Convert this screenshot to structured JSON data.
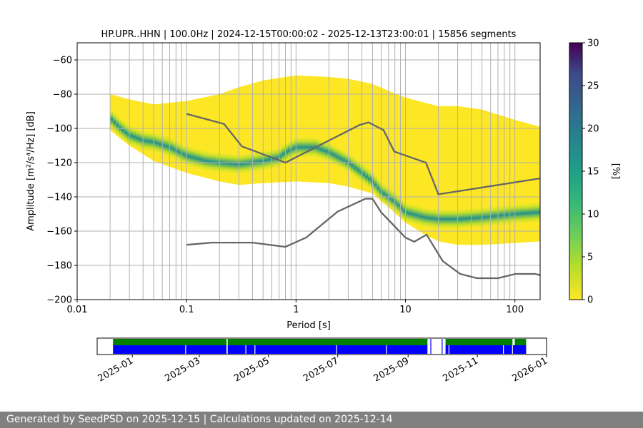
{
  "footer": {
    "generated_text": "Generated by SeedPSD on 2025-12-15 | Calculations updated on 2025-12-14"
  },
  "chart_data": [
    {
      "type": "heatmap",
      "title": "HP.UPR..HHN | 100.0Hz | 2024-12-15T00:00:02 - 2025-12-13T23:00:01 | 15856 segments",
      "xlabel": "Period [s]",
      "ylabel": "Amplitude [m²/s⁴/Hz] [dB]",
      "x_scale": "log",
      "xlim": [
        0.01,
        170
      ],
      "ylim": [
        -200,
        -50
      ],
      "x_ticks": [
        0.01,
        0.1,
        1,
        10,
        100
      ],
      "x_tick_labels": [
        "0.01",
        "0.1",
        "1",
        "10",
        "100"
      ],
      "y_ticks": [
        -200,
        -180,
        -160,
        -140,
        -120,
        -100,
        -80,
        -60
      ],
      "y_tick_labels": [
        "−200",
        "−180",
        "−160",
        "−140",
        "−120",
        "−100",
        "−80",
        "−60"
      ],
      "grid": true,
      "colorbar": {
        "label": "[%]",
        "range": [
          0,
          30
        ],
        "ticks": [
          0,
          5,
          10,
          15,
          20,
          25,
          30
        ],
        "tick_labels": [
          "0",
          "5",
          "10",
          "15",
          "20",
          "25",
          "30"
        ],
        "colormap": "viridis"
      },
      "psd_mode": {
        "period": [
          0.02,
          0.025,
          0.03,
          0.04,
          0.05,
          0.07,
          0.1,
          0.15,
          0.2,
          0.3,
          0.5,
          0.7,
          0.8,
          1,
          1.5,
          2,
          3,
          4,
          5,
          6,
          8,
          10,
          15,
          20,
          30,
          50,
          100,
          170
        ],
        "db": [
          -94,
          -100,
          -104,
          -107,
          -108,
          -111,
          -116,
          -119,
          -120,
          -121,
          -119,
          -117,
          -114,
          -111,
          -111,
          -114,
          -120,
          -126,
          -131,
          -137,
          -143,
          -149,
          -152,
          -153,
          -153,
          -152,
          -150,
          -149
        ]
      },
      "psd_range": {
        "period": [
          0.02,
          0.03,
          0.05,
          0.1,
          0.2,
          0.3,
          0.5,
          1,
          2,
          3,
          5,
          7,
          10,
          15,
          20,
          30,
          50,
          100,
          170
        ],
        "upper_db": [
          -80,
          -83,
          -86,
          -84,
          -80,
          -76,
          -72,
          -69,
          -70,
          -71,
          -74,
          -78,
          -82,
          -85,
          -87,
          -87,
          -89,
          -95,
          -99
        ],
        "lower_db": [
          -101,
          -110,
          -119,
          -126,
          -131,
          -133,
          -132,
          -131,
          -132,
          -134,
          -138,
          -146,
          -155,
          -162,
          -166,
          -168,
          -168,
          -167,
          -166
        ]
      },
      "nhnm": {
        "period": [
          0.1,
          0.22,
          0.32,
          0.8,
          3.8,
          4.6,
          6.3,
          7.9,
          15.4,
          20,
          354.8
        ],
        "db": [
          -91.5,
          -97.4,
          -110.5,
          -120,
          -98,
          -96.5,
          -101,
          -113.5,
          -120,
          -138.5,
          -126
        ]
      },
      "nlnm": {
        "period": [
          0.1,
          0.17,
          0.4,
          0.8,
          1.24,
          2.4,
          4.3,
          5.0,
          6.0,
          10.0,
          12.0,
          15.6,
          21.9,
          31.6,
          45,
          70,
          101,
          154,
          170
        ],
        "db": [
          -168,
          -166.7,
          -166.7,
          -169.2,
          -163.7,
          -148.6,
          -141.1,
          -141.1,
          -149,
          -163.8,
          -166.2,
          -162.1,
          -177.5,
          -185,
          -187.5,
          -187.5,
          -185,
          -185,
          -185.7
        ]
      }
    },
    {
      "type": "area",
      "title": "",
      "x_labels": [
        "2025-01",
        "2025-03",
        "2025-05",
        "2025-07",
        "2025-09",
        "2025-11",
        "2026-01"
      ],
      "x_label_dates": [
        "2025-01-01",
        "2025-03-01",
        "2025-05-01",
        "2025-07-01",
        "2025-09-01",
        "2025-11-01",
        "2026-01-01"
      ],
      "xlim": [
        "2024-12-01",
        "2026-01-01"
      ],
      "colors": {
        "processed": "#008000",
        "data": "#0000ff"
      },
      "processed_spans": [
        [
          "2024-12-15",
          "2025-03-25"
        ],
        [
          "2025-03-26",
          "2025-09-18"
        ],
        [
          "2025-10-04",
          "2025-12-02"
        ],
        [
          "2025-12-04",
          "2025-12-14"
        ]
      ],
      "data_spans": [
        [
          "2024-12-15",
          "2025-03-25"
        ],
        [
          "2025-03-26",
          "2025-09-18"
        ],
        [
          "2025-10-04",
          "2025-12-14"
        ]
      ],
      "data_gaps": [
        "2025-02-17",
        "2025-04-11",
        "2025-04-19",
        "2025-06-30",
        "2025-08-13",
        "2025-10-07",
        "2025-11-24",
        "2025-12-02"
      ],
      "extra_bars": [
        "2025-09-21",
        "2025-10-01"
      ]
    }
  ]
}
